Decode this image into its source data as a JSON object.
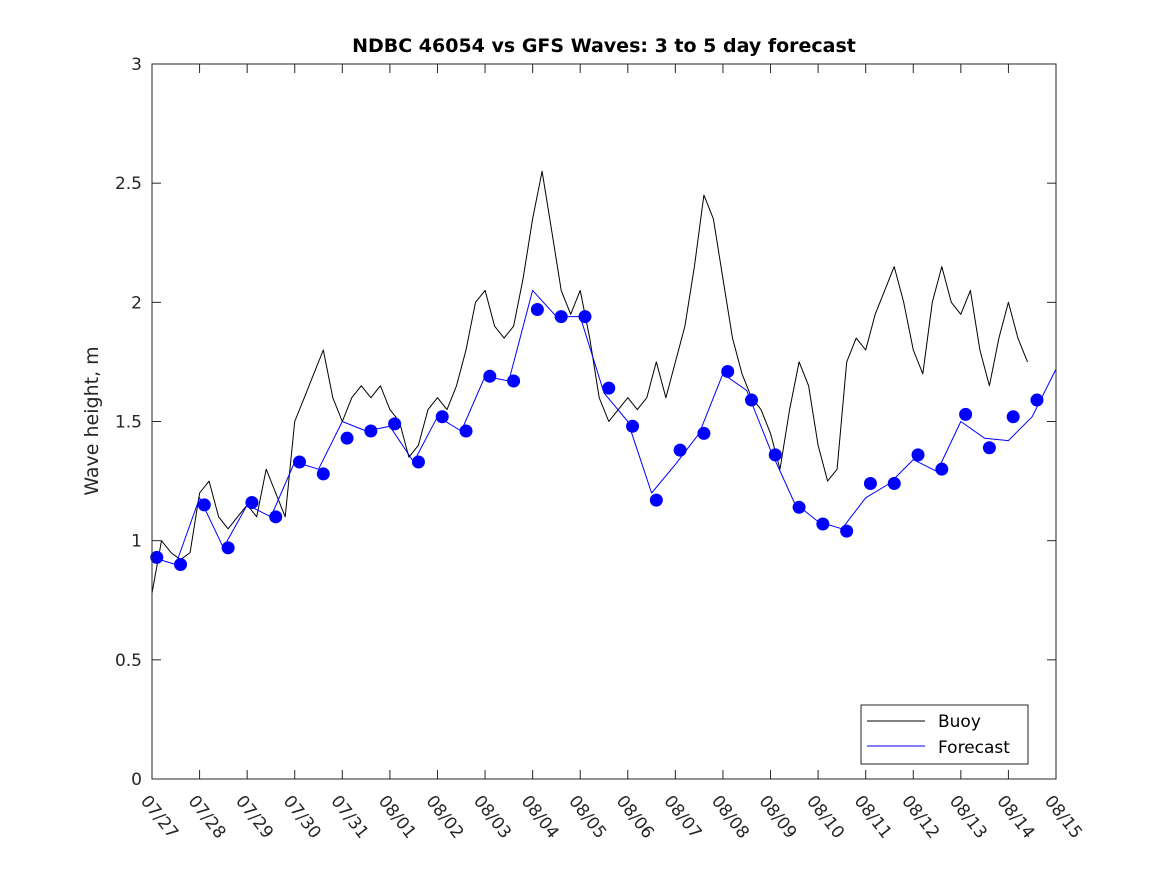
{
  "chart_data": {
    "type": "line",
    "title": "NDBC 46054 vs GFS Waves: 3 to 5 day forecast",
    "xlabel": "",
    "ylabel": "Wave height, m",
    "xlim": [
      "07/27",
      "08/15"
    ],
    "ylim": [
      0,
      3
    ],
    "x_tick_labels": [
      "07/27",
      "07/28",
      "07/29",
      "07/30",
      "07/31",
      "08/01",
      "08/02",
      "08/03",
      "08/04",
      "08/05",
      "08/06",
      "08/07",
      "08/08",
      "08/09",
      "08/10",
      "08/11",
      "08/12",
      "08/13",
      "08/14",
      "08/15"
    ],
    "y_ticks": [
      0,
      0.5,
      1,
      1.5,
      2,
      2.5,
      3
    ],
    "y_tick_labels": [
      "0",
      "0.5",
      "1",
      "1.5",
      "2",
      "2.5",
      "3"
    ],
    "grid": false,
    "legend_position": "bottom-right",
    "series": [
      {
        "name": "Buoy",
        "color": "#000000",
        "style": "line",
        "x_day": [
          0,
          0.2,
          0.4,
          0.6,
          0.8,
          1.0,
          1.2,
          1.4,
          1.6,
          1.8,
          2.0,
          2.2,
          2.4,
          2.6,
          2.8,
          3.0,
          3.2,
          3.4,
          3.6,
          3.8,
          4.0,
          4.2,
          4.4,
          4.6,
          4.8,
          5.0,
          5.2,
          5.4,
          5.6,
          5.8,
          6.0,
          6.2,
          6.4,
          6.6,
          6.8,
          7.0,
          7.2,
          7.4,
          7.6,
          7.8,
          8.0,
          8.2,
          8.4,
          8.6,
          8.8,
          9.0,
          9.2,
          9.4,
          9.6,
          9.8,
          10.0,
          10.2,
          10.4,
          10.6,
          10.8,
          11.0,
          11.2,
          11.4,
          11.6,
          11.8,
          12.0,
          12.2,
          12.4,
          12.6,
          12.8,
          13.0,
          13.2,
          13.4,
          13.6,
          13.8,
          14.0,
          14.2,
          14.4,
          14.6,
          14.8,
          15.0,
          15.2,
          15.4,
          15.6,
          15.8,
          16.0,
          16.2,
          16.4,
          16.6,
          16.8,
          17.0,
          17.2,
          17.4,
          17.6,
          17.8,
          18.0,
          18.2,
          18.4
        ],
        "y": [
          0.78,
          1.0,
          0.95,
          0.92,
          0.95,
          1.2,
          1.25,
          1.1,
          1.05,
          1.1,
          1.15,
          1.1,
          1.3,
          1.2,
          1.1,
          1.5,
          1.6,
          1.7,
          1.8,
          1.6,
          1.5,
          1.6,
          1.65,
          1.6,
          1.65,
          1.55,
          1.5,
          1.35,
          1.4,
          1.55,
          1.6,
          1.55,
          1.65,
          1.8,
          2.0,
          2.05,
          1.9,
          1.85,
          1.9,
          2.1,
          2.35,
          2.55,
          2.3,
          2.05,
          1.95,
          2.05,
          1.85,
          1.6,
          1.5,
          1.55,
          1.6,
          1.55,
          1.6,
          1.75,
          1.6,
          1.75,
          1.9,
          2.15,
          2.45,
          2.35,
          2.1,
          1.85,
          1.7,
          1.6,
          1.55,
          1.45,
          1.3,
          1.55,
          1.75,
          1.65,
          1.4,
          1.25,
          1.3,
          1.75,
          1.85,
          1.8,
          1.95,
          2.05,
          2.15,
          2.0,
          1.8,
          1.7,
          2.0,
          2.15,
          2.0,
          1.95,
          2.05,
          1.8,
          1.65,
          1.85,
          2.0,
          1.85,
          1.75
        ]
      },
      {
        "name": "Forecast",
        "color": "#0000ff",
        "style": "line",
        "x_day": [
          0,
          0.5,
          1.0,
          1.5,
          2.0,
          2.5,
          3.0,
          3.5,
          4.0,
          4.5,
          5.0,
          5.5,
          6.0,
          6.5,
          7.0,
          7.5,
          8.0,
          8.5,
          9.0,
          9.5,
          10.0,
          10.5,
          11.0,
          11.5,
          12.0,
          12.5,
          13.0,
          13.5,
          14.0,
          14.5,
          15.0,
          15.5,
          16.0,
          16.5,
          17.0,
          17.5,
          18.0,
          18.5,
          19.0
        ],
        "y": [
          0.93,
          0.9,
          1.18,
          0.97,
          1.15,
          1.1,
          1.33,
          1.3,
          1.5,
          1.46,
          1.48,
          1.33,
          1.52,
          1.46,
          1.69,
          1.67,
          2.05,
          1.94,
          1.94,
          1.62,
          1.5,
          1.2,
          1.32,
          1.45,
          1.7,
          1.63,
          1.38,
          1.16,
          1.08,
          1.05,
          1.18,
          1.24,
          1.34,
          1.29,
          1.5,
          1.43,
          1.42,
          1.52,
          1.72
        ]
      }
    ],
    "forecast_markers": {
      "x_day": [
        0.1,
        0.6,
        1.1,
        1.6,
        2.1,
        2.6,
        3.1,
        3.6,
        4.1,
        4.6,
        5.1,
        5.6,
        6.1,
        6.6,
        7.1,
        7.6,
        8.1,
        8.6,
        9.1,
        9.6,
        10.1,
        10.6,
        11.1,
        11.6,
        12.1,
        12.6,
        13.1,
        13.6,
        14.1,
        14.6,
        15.1,
        15.6,
        16.1,
        16.6,
        17.1,
        17.6,
        18.1,
        18.6
      ],
      "y": [
        0.93,
        0.9,
        1.15,
        0.97,
        1.16,
        1.1,
        1.33,
        1.28,
        1.43,
        1.46,
        1.49,
        1.33,
        1.52,
        1.46,
        1.69,
        1.67,
        1.97,
        1.94,
        1.94,
        1.64,
        1.48,
        1.17,
        1.38,
        1.45,
        1.71,
        1.59,
        1.36,
        1.14,
        1.07,
        1.04,
        1.24,
        1.24,
        1.36,
        1.3,
        1.53,
        1.39,
        1.52,
        1.59
      ]
    }
  }
}
